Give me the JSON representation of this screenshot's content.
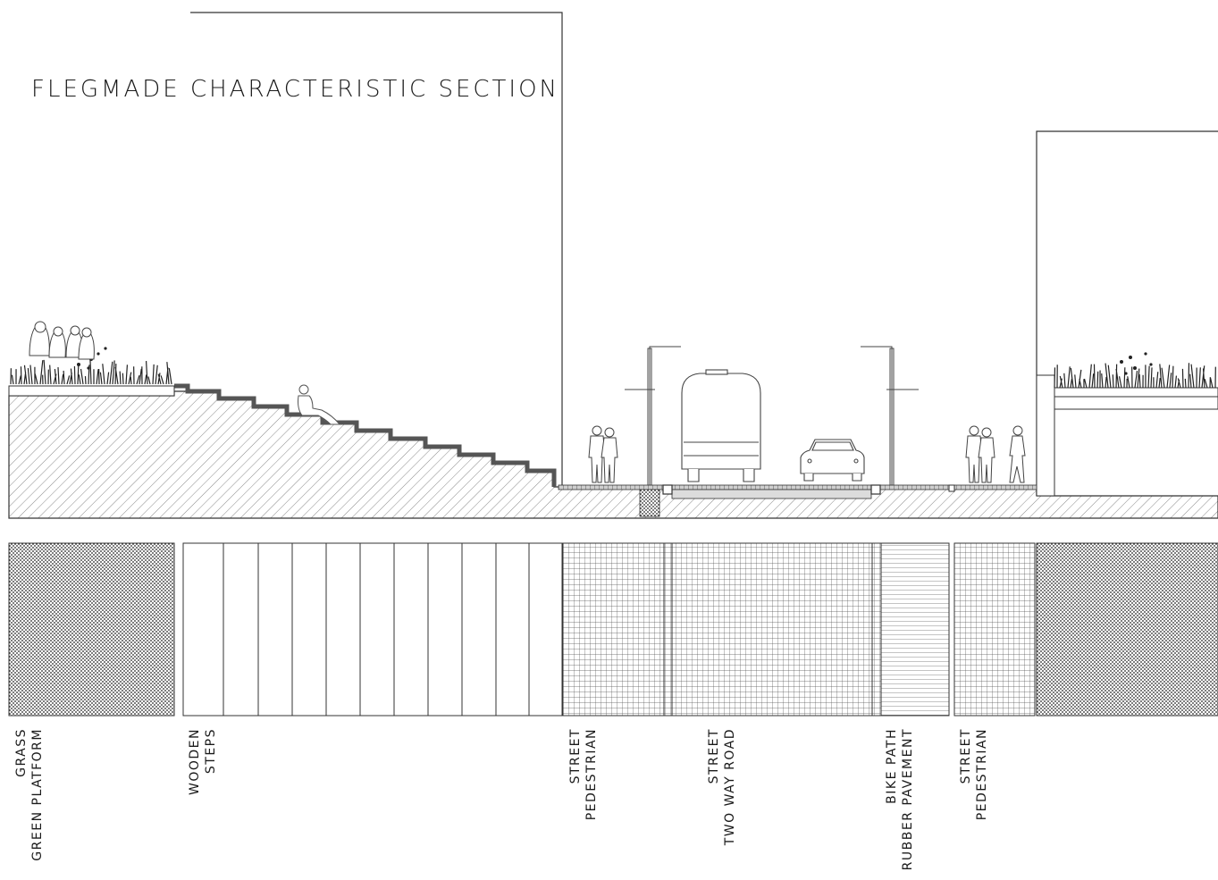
{
  "title": "FLEGMADE  CHARACTERISTIC  SECTION",
  "colors": {
    "line": "#2a2a2a",
    "hatch": "#7a7a7a",
    "paving": "#555555",
    "background": "#ffffff"
  },
  "materials": [
    {
      "id": "grass",
      "pattern": "dots",
      "lines": [
        "GRASS",
        "GREEN  PLATFORM"
      ]
    },
    {
      "id": "wooden-steps",
      "pattern": "planks",
      "lines": [
        "WOODEN",
        "STEPS"
      ]
    },
    {
      "id": "pedestrian-left",
      "pattern": "grid",
      "lines": [
        "STREET",
        "PEDESTRIAN"
      ]
    },
    {
      "id": "road",
      "pattern": "grid",
      "lines": [
        "STREET",
        "TWO  WAY  ROAD"
      ]
    },
    {
      "id": "bike-path",
      "pattern": "hlines",
      "lines": [
        "BIKE  PATH",
        "RUBBER  PAVEMENT"
      ]
    },
    {
      "id": "pedestrian-right",
      "pattern": "grid",
      "lines": [
        "STREET",
        "PEDESTRIAN"
      ]
    },
    {
      "id": "grass-right",
      "pattern": "dots",
      "lines": []
    }
  ],
  "figures": [
    "people-group-icon",
    "seated-person-icon",
    "bus-icon",
    "car-icon",
    "street-lamp-icon",
    "plants-icon"
  ]
}
